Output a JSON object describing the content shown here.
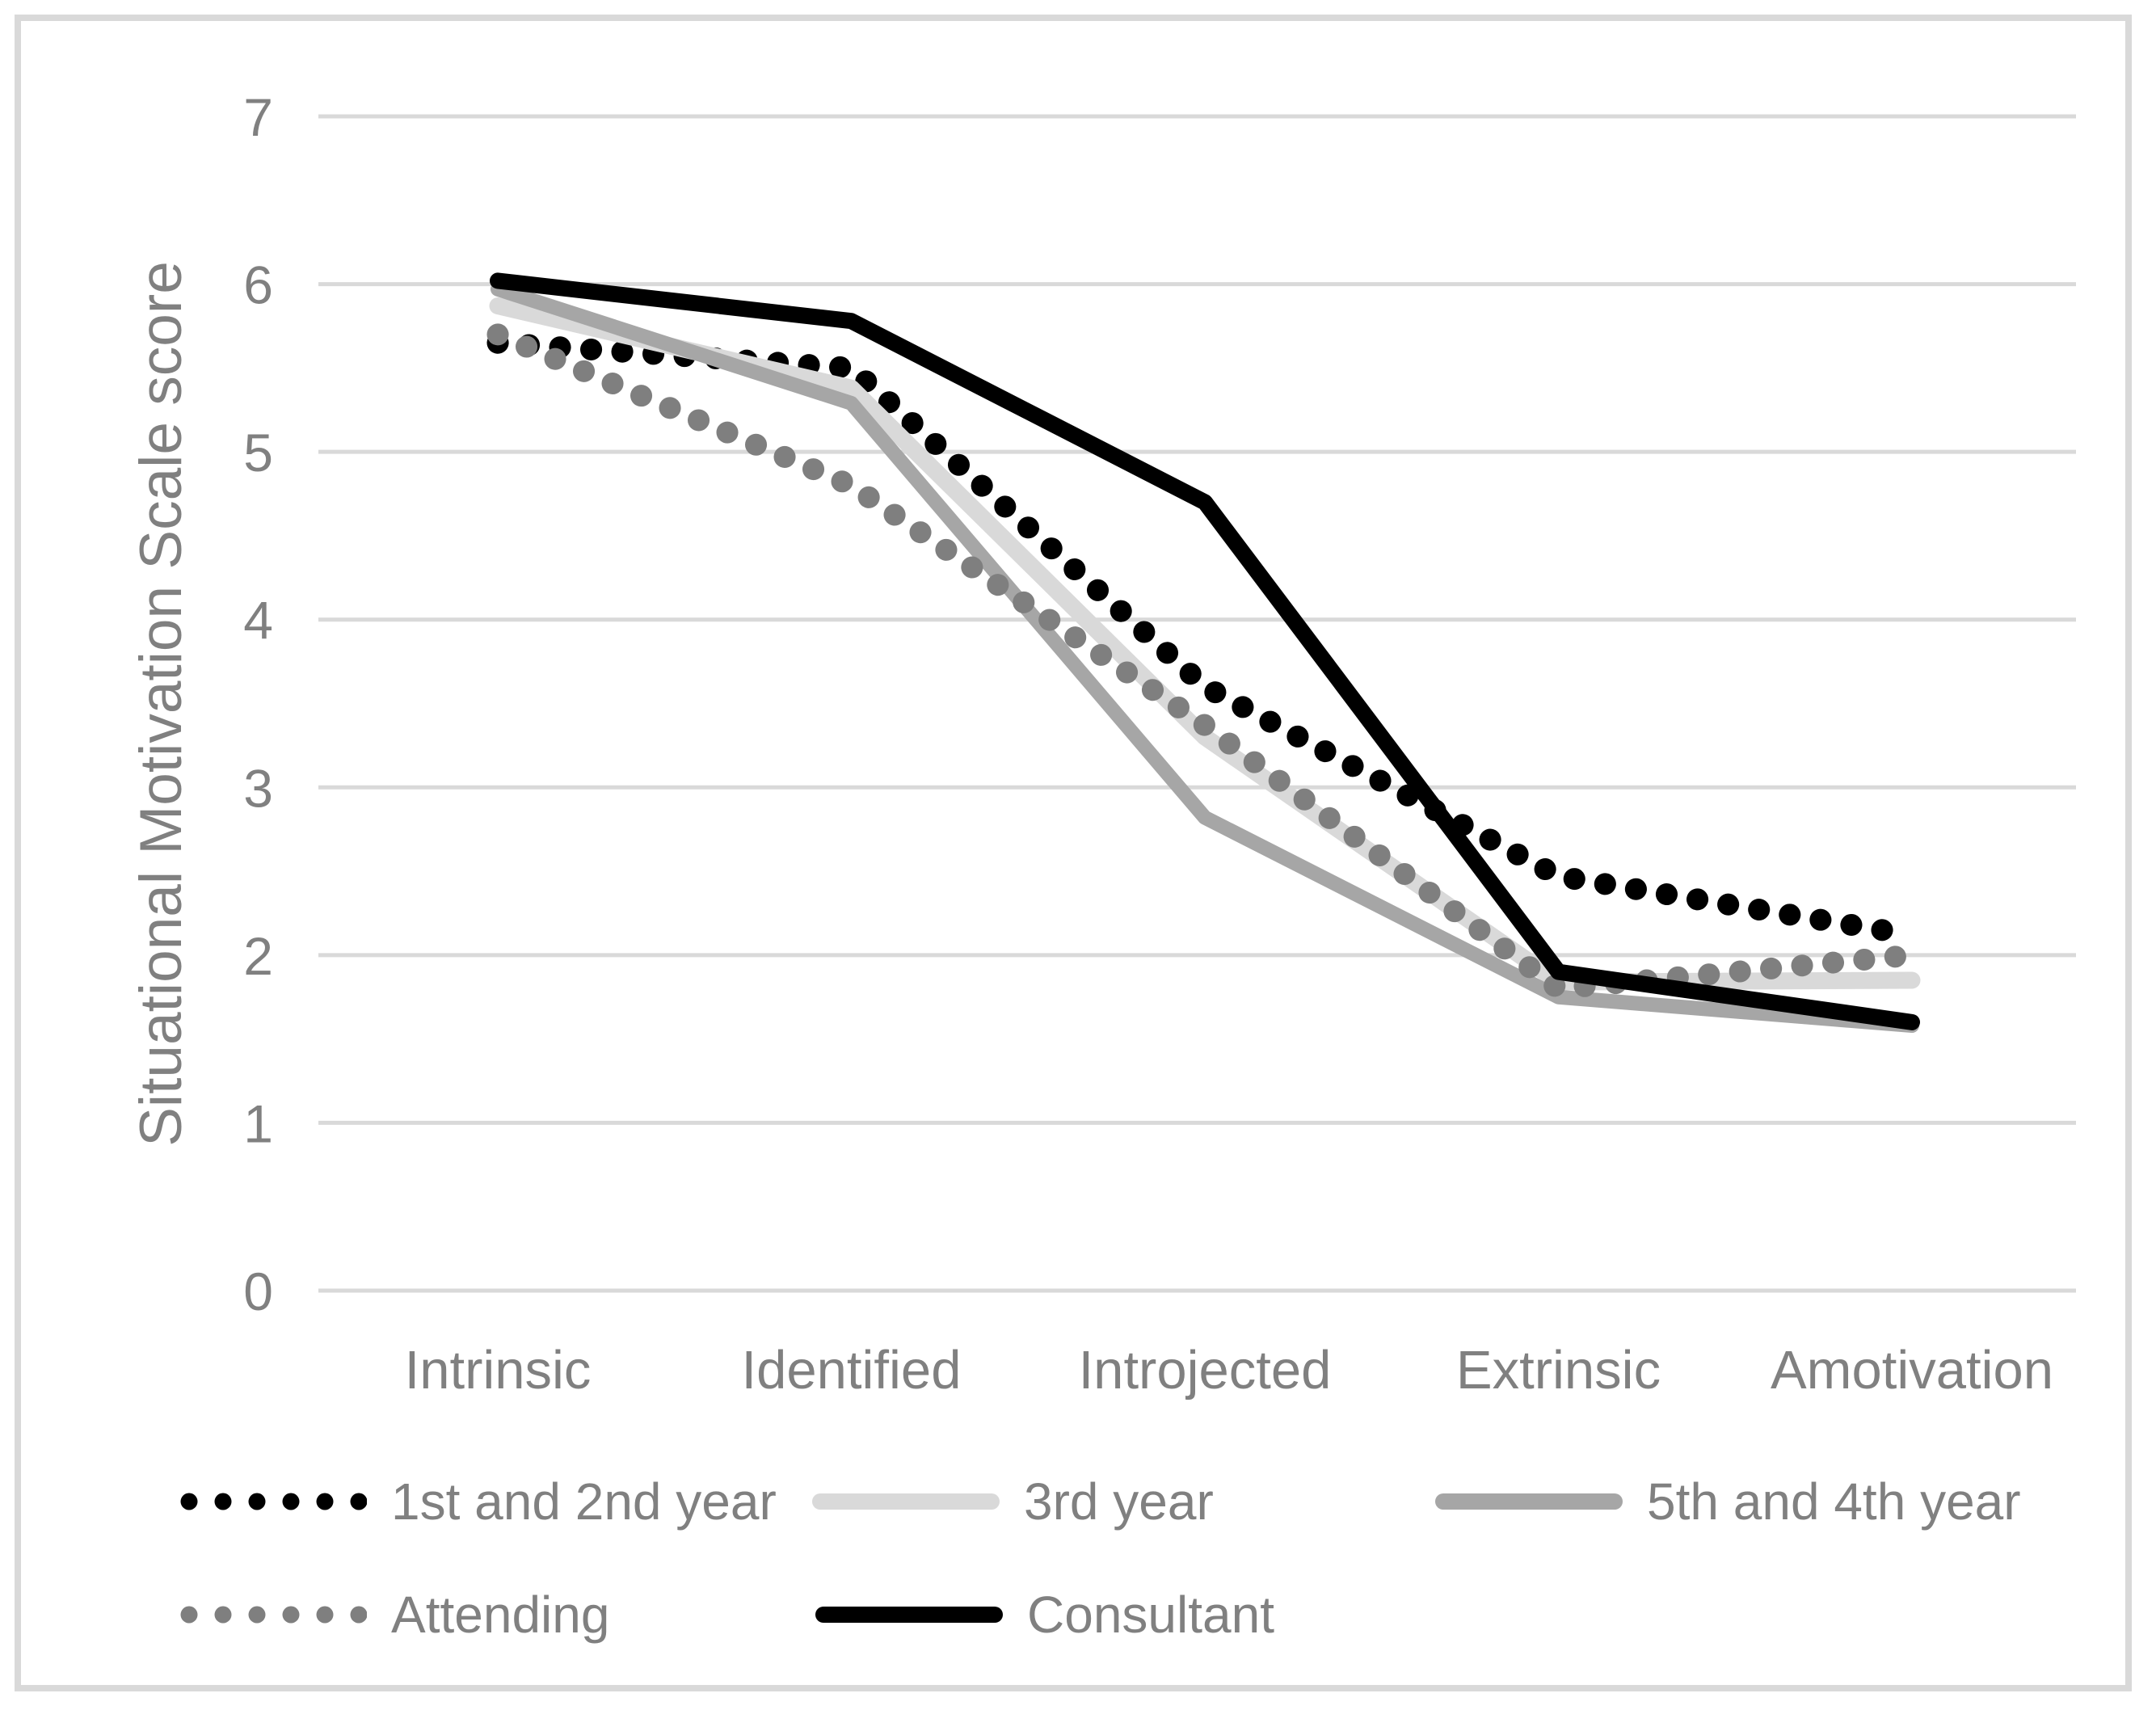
{
  "figure": {
    "background": "#ffffff",
    "border_color": "#d9d9d9"
  },
  "axis": {
    "tick_color": "#808080",
    "gridline_color": "#d9d9d9",
    "title_color": "#808080"
  },
  "chart_data": {
    "type": "line",
    "title": "",
    "xlabel": "",
    "ylabel": "Situational Motivation Scale score",
    "ylim": [
      0,
      7
    ],
    "yticks": [
      0,
      1,
      2,
      3,
      4,
      5,
      6,
      7
    ],
    "grid": "horizontal",
    "legend_position": "bottom",
    "categories": [
      "Intrinsic",
      "Identified",
      "Introjected",
      "Extrinsic",
      "Amotivation"
    ],
    "series": [
      {
        "name": "1st and 2nd year",
        "style": "dotted",
        "color": "#000000",
        "values": [
          5.65,
          5.5,
          3.6,
          2.47,
          2.12
        ]
      },
      {
        "name": "3rd year",
        "style": "solid",
        "color": "#d9d9d9",
        "values": [
          5.87,
          5.38,
          3.3,
          1.84,
          1.85
        ]
      },
      {
        "name": "5th and 4th year",
        "style": "solid",
        "color": "#a6a6a6",
        "values": [
          5.97,
          5.29,
          2.82,
          1.75,
          1.58
        ]
      },
      {
        "name": "Attending",
        "style": "dotted",
        "color": "#7f7f7f",
        "values": [
          5.7,
          4.8,
          3.37,
          1.8,
          2.0
        ]
      },
      {
        "name": "Consultant",
        "style": "solid",
        "color": "#000000",
        "values": [
          6.02,
          5.78,
          4.7,
          1.9,
          1.6
        ]
      }
    ]
  }
}
